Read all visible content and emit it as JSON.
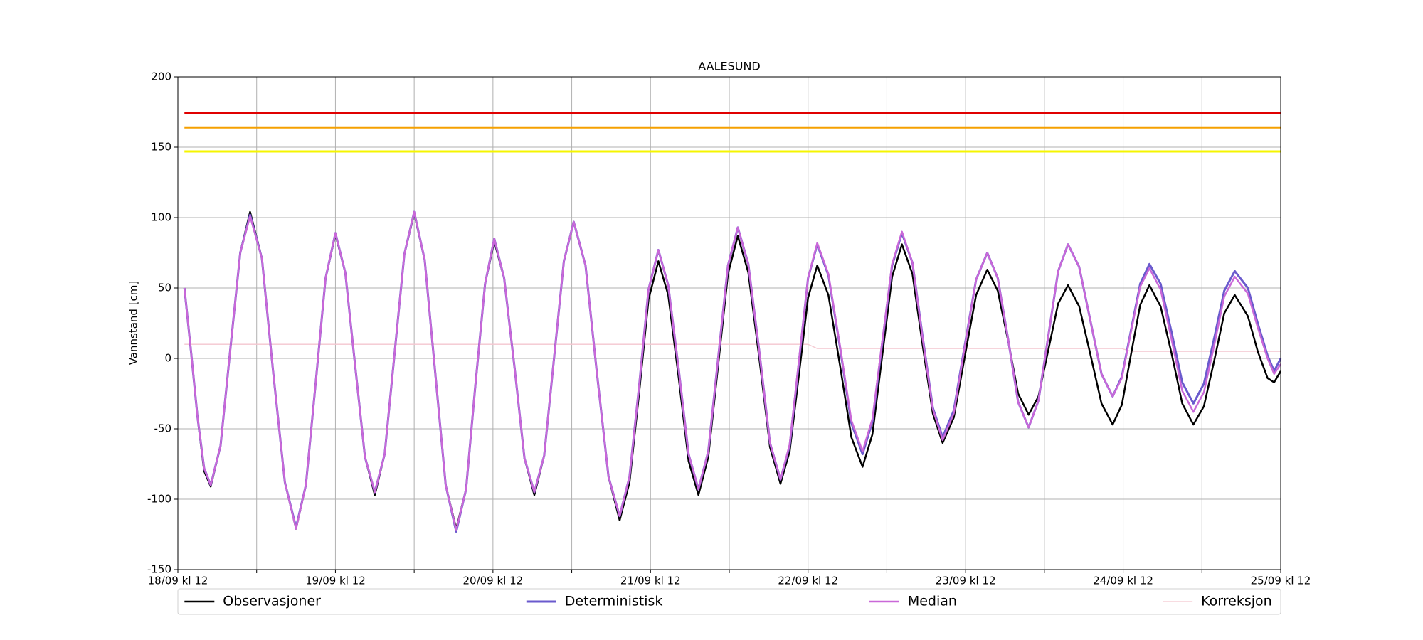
{
  "chart_data": {
    "type": "line",
    "title": "AALESUND",
    "ylabel": "Vannstand [cm]",
    "x": [
      1,
      2,
      3,
      4,
      5,
      6.5,
      8,
      9.5,
      11,
      12.8,
      14.5,
      16.3,
      18,
      19.5,
      21,
      22.5,
      24,
      25.5,
      27,
      28.5,
      30,
      31.5,
      33,
      34.5,
      36,
      37.6,
      39.2,
      40.8,
      42.4,
      43.9,
      45.3,
      46.8,
      48.2,
      49.7,
      51.3,
      52.8,
      54.3,
      55.8,
      57.3,
      58.8,
      60.3,
      62.1,
      63.8,
      65.6,
      67.3,
      68.8,
      70.3,
      71.7,
      73.2,
      74.7,
      76.3,
      77.8,
      79.3,
      80.8,
      82.3,
      83.8,
      85.3,
      86.9,
      88.6,
      90.2,
      91.8,
      93.2,
      94.6,
      96,
      97.4,
      99.1,
      100.9,
      102.6,
      104.3,
      105.8,
      107.3,
      108.8,
      110.3,
      111.9,
      113.4,
      115,
      116.5,
      118.2,
      119.9,
      121.6,
      123.3,
      124.9,
      126.5,
      128,
      129.6,
      131.1,
      132.6,
      134.1,
      135.6,
      137.3,
      139,
      140.7,
      142.4,
      143.8,
      145.2,
      146.6,
      148,
      149.7,
      151.4,
      153,
      154.7,
      156.3,
      157.9,
      159.4,
      161,
      163,
      164.5,
      166,
      167,
      168
    ],
    "series": [
      {
        "name": "Observasjoner",
        "color": "#000000",
        "width": 2.5,
        "values": [
          50,
          5,
          -42,
          -80,
          -91,
          -62,
          7,
          75,
          104,
          71,
          -9,
          -88,
          -121,
          -90,
          -17,
          57,
          88,
          61,
          -5,
          -70,
          -97,
          -68,
          3,
          74,
          103,
          70,
          -10,
          -90,
          -121,
          -93,
          -20,
          53,
          83,
          57,
          -7,
          -71,
          -97,
          -69,
          0,
          69,
          97,
          66,
          -9,
          -84,
          -115,
          -88,
          -23,
          42,
          69,
          45,
          -14,
          -73,
          -97,
          -70,
          -5,
          60,
          87,
          61,
          -1,
          -63,
          -89,
          -66,
          -12,
          43,
          66,
          45,
          -6,
          -56,
          -77,
          -54,
          2,
          58,
          81,
          60,
          11,
          -39,
          -60,
          -42,
          2,
          45,
          63,
          48,
          12,
          -25,
          -40,
          -27,
          6,
          39,
          52,
          37,
          3,
          -32,
          -47,
          -33,
          3,
          38,
          52,
          37,
          3,
          -32,
          -47,
          -34,
          -1,
          32,
          45,
          30,
          5,
          -14,
          -17,
          -9
        ]
      },
      {
        "name": "Deterministisk",
        "color": "#6a5acd",
        "width": 3,
        "values": [
          50,
          5,
          -42,
          -78,
          -90,
          -62,
          7,
          75,
          102,
          71,
          -9,
          -88,
          -120,
          -90,
          -17,
          57,
          89,
          61,
          -5,
          -70,
          -95,
          -68,
          3,
          74,
          104,
          70,
          -10,
          -90,
          -123,
          -93,
          -20,
          53,
          85,
          57,
          -7,
          -71,
          -95,
          -69,
          0,
          69,
          97,
          66,
          -9,
          -84,
          -112,
          -84,
          -18,
          49,
          77,
          52,
          -8,
          -68,
          -93,
          -66,
          0,
          66,
          93,
          67,
          4,
          -60,
          -86,
          -62,
          -3,
          57,
          81,
          59,
          7,
          -46,
          -68,
          -45,
          11,
          66,
          89,
          68,
          17,
          -35,
          -56,
          -37,
          10,
          56,
          75,
          57,
          13,
          -31,
          -49,
          -30,
          16,
          62,
          81,
          65,
          27,
          -11,
          -27,
          -13,
          20,
          53,
          67,
          53,
          18,
          -17,
          -32,
          -18,
          15,
          48,
          62,
          50,
          25,
          2,
          -9,
          0
        ]
      },
      {
        "name": "Median",
        "color": "#c968d8",
        "width": 2.5,
        "values": [
          50,
          5,
          -42,
          -78,
          -90,
          -62,
          7,
          75,
          101,
          71,
          -9,
          -88,
          -121,
          -90,
          -17,
          57,
          89,
          61,
          -5,
          -70,
          -95,
          -68,
          3,
          74,
          104,
          70,
          -10,
          -90,
          -122,
          -93,
          -20,
          53,
          85,
          57,
          -7,
          -71,
          -95,
          -69,
          0,
          69,
          97,
          66,
          -9,
          -84,
          -112,
          -84,
          -18,
          49,
          77,
          52,
          -8,
          -68,
          -93,
          -66,
          0,
          66,
          93,
          67,
          4,
          -60,
          -86,
          -61,
          -2,
          57,
          82,
          60,
          8,
          -44,
          -66,
          -43,
          12,
          67,
          90,
          68,
          16,
          -36,
          -58,
          -39,
          9,
          56,
          75,
          57,
          13,
          -31,
          -49,
          -30,
          16,
          62,
          81,
          65,
          27,
          -11,
          -27,
          -14,
          19,
          51,
          64,
          49,
          13,
          -23,
          -38,
          -24,
          10,
          44,
          58,
          46,
          22,
          0,
          -11,
          -4
        ]
      },
      {
        "name": "Korreksjon",
        "color": "#f4c6cf",
        "width": 1.3,
        "values": [
          10,
          10,
          10,
          10,
          10,
          10,
          10,
          10,
          10,
          10,
          10,
          10,
          10,
          10,
          10,
          10,
          10,
          10,
          10,
          10,
          10,
          10,
          10,
          10,
          10,
          10,
          10,
          10,
          10,
          10,
          10,
          10,
          10,
          10,
          10,
          10,
          10,
          10,
          10,
          10,
          10,
          10,
          10,
          10,
          10,
          10,
          10,
          10,
          10,
          10,
          10,
          10,
          10,
          10,
          10,
          10,
          10,
          10,
          10,
          10,
          10,
          10,
          10,
          10,
          7,
          7,
          7,
          7,
          7,
          7,
          7,
          7,
          7,
          7,
          7,
          7,
          7,
          7,
          7,
          7,
          7,
          7,
          7,
          7,
          7,
          7,
          7,
          7,
          7,
          7,
          7,
          7,
          7,
          7,
          5,
          5,
          5,
          5,
          5,
          5,
          5,
          5,
          5,
          5,
          5,
          5,
          5,
          5,
          5,
          5
        ]
      }
    ],
    "reference_lines": [
      {
        "value": 174,
        "color": "#e00000"
      },
      {
        "value": 164,
        "color": "#f5a000"
      },
      {
        "value": 147,
        "color": "#f5f500"
      }
    ],
    "xlim": [
      0,
      168
    ],
    "ylim": [
      -150,
      200
    ],
    "xticks": [
      {
        "value": 0,
        "label": "18/09 kl 12"
      },
      {
        "value": 24,
        "label": "19/09 kl 12"
      },
      {
        "value": 48,
        "label": "20/09 kl 12"
      },
      {
        "value": 72,
        "label": "21/09 kl 12"
      },
      {
        "value": 96,
        "label": "22/09 kl 12"
      },
      {
        "value": 120,
        "label": "23/09 kl 12"
      },
      {
        "value": 144,
        "label": "24/09 kl 12"
      },
      {
        "value": 168,
        "label": "25/09 kl 12"
      }
    ],
    "xminorticks": [
      12,
      36,
      60,
      84,
      108,
      132,
      156
    ],
    "yticks": [
      -150,
      -100,
      -50,
      0,
      50,
      100,
      150,
      200
    ],
    "grid": true,
    "legend": "below"
  }
}
